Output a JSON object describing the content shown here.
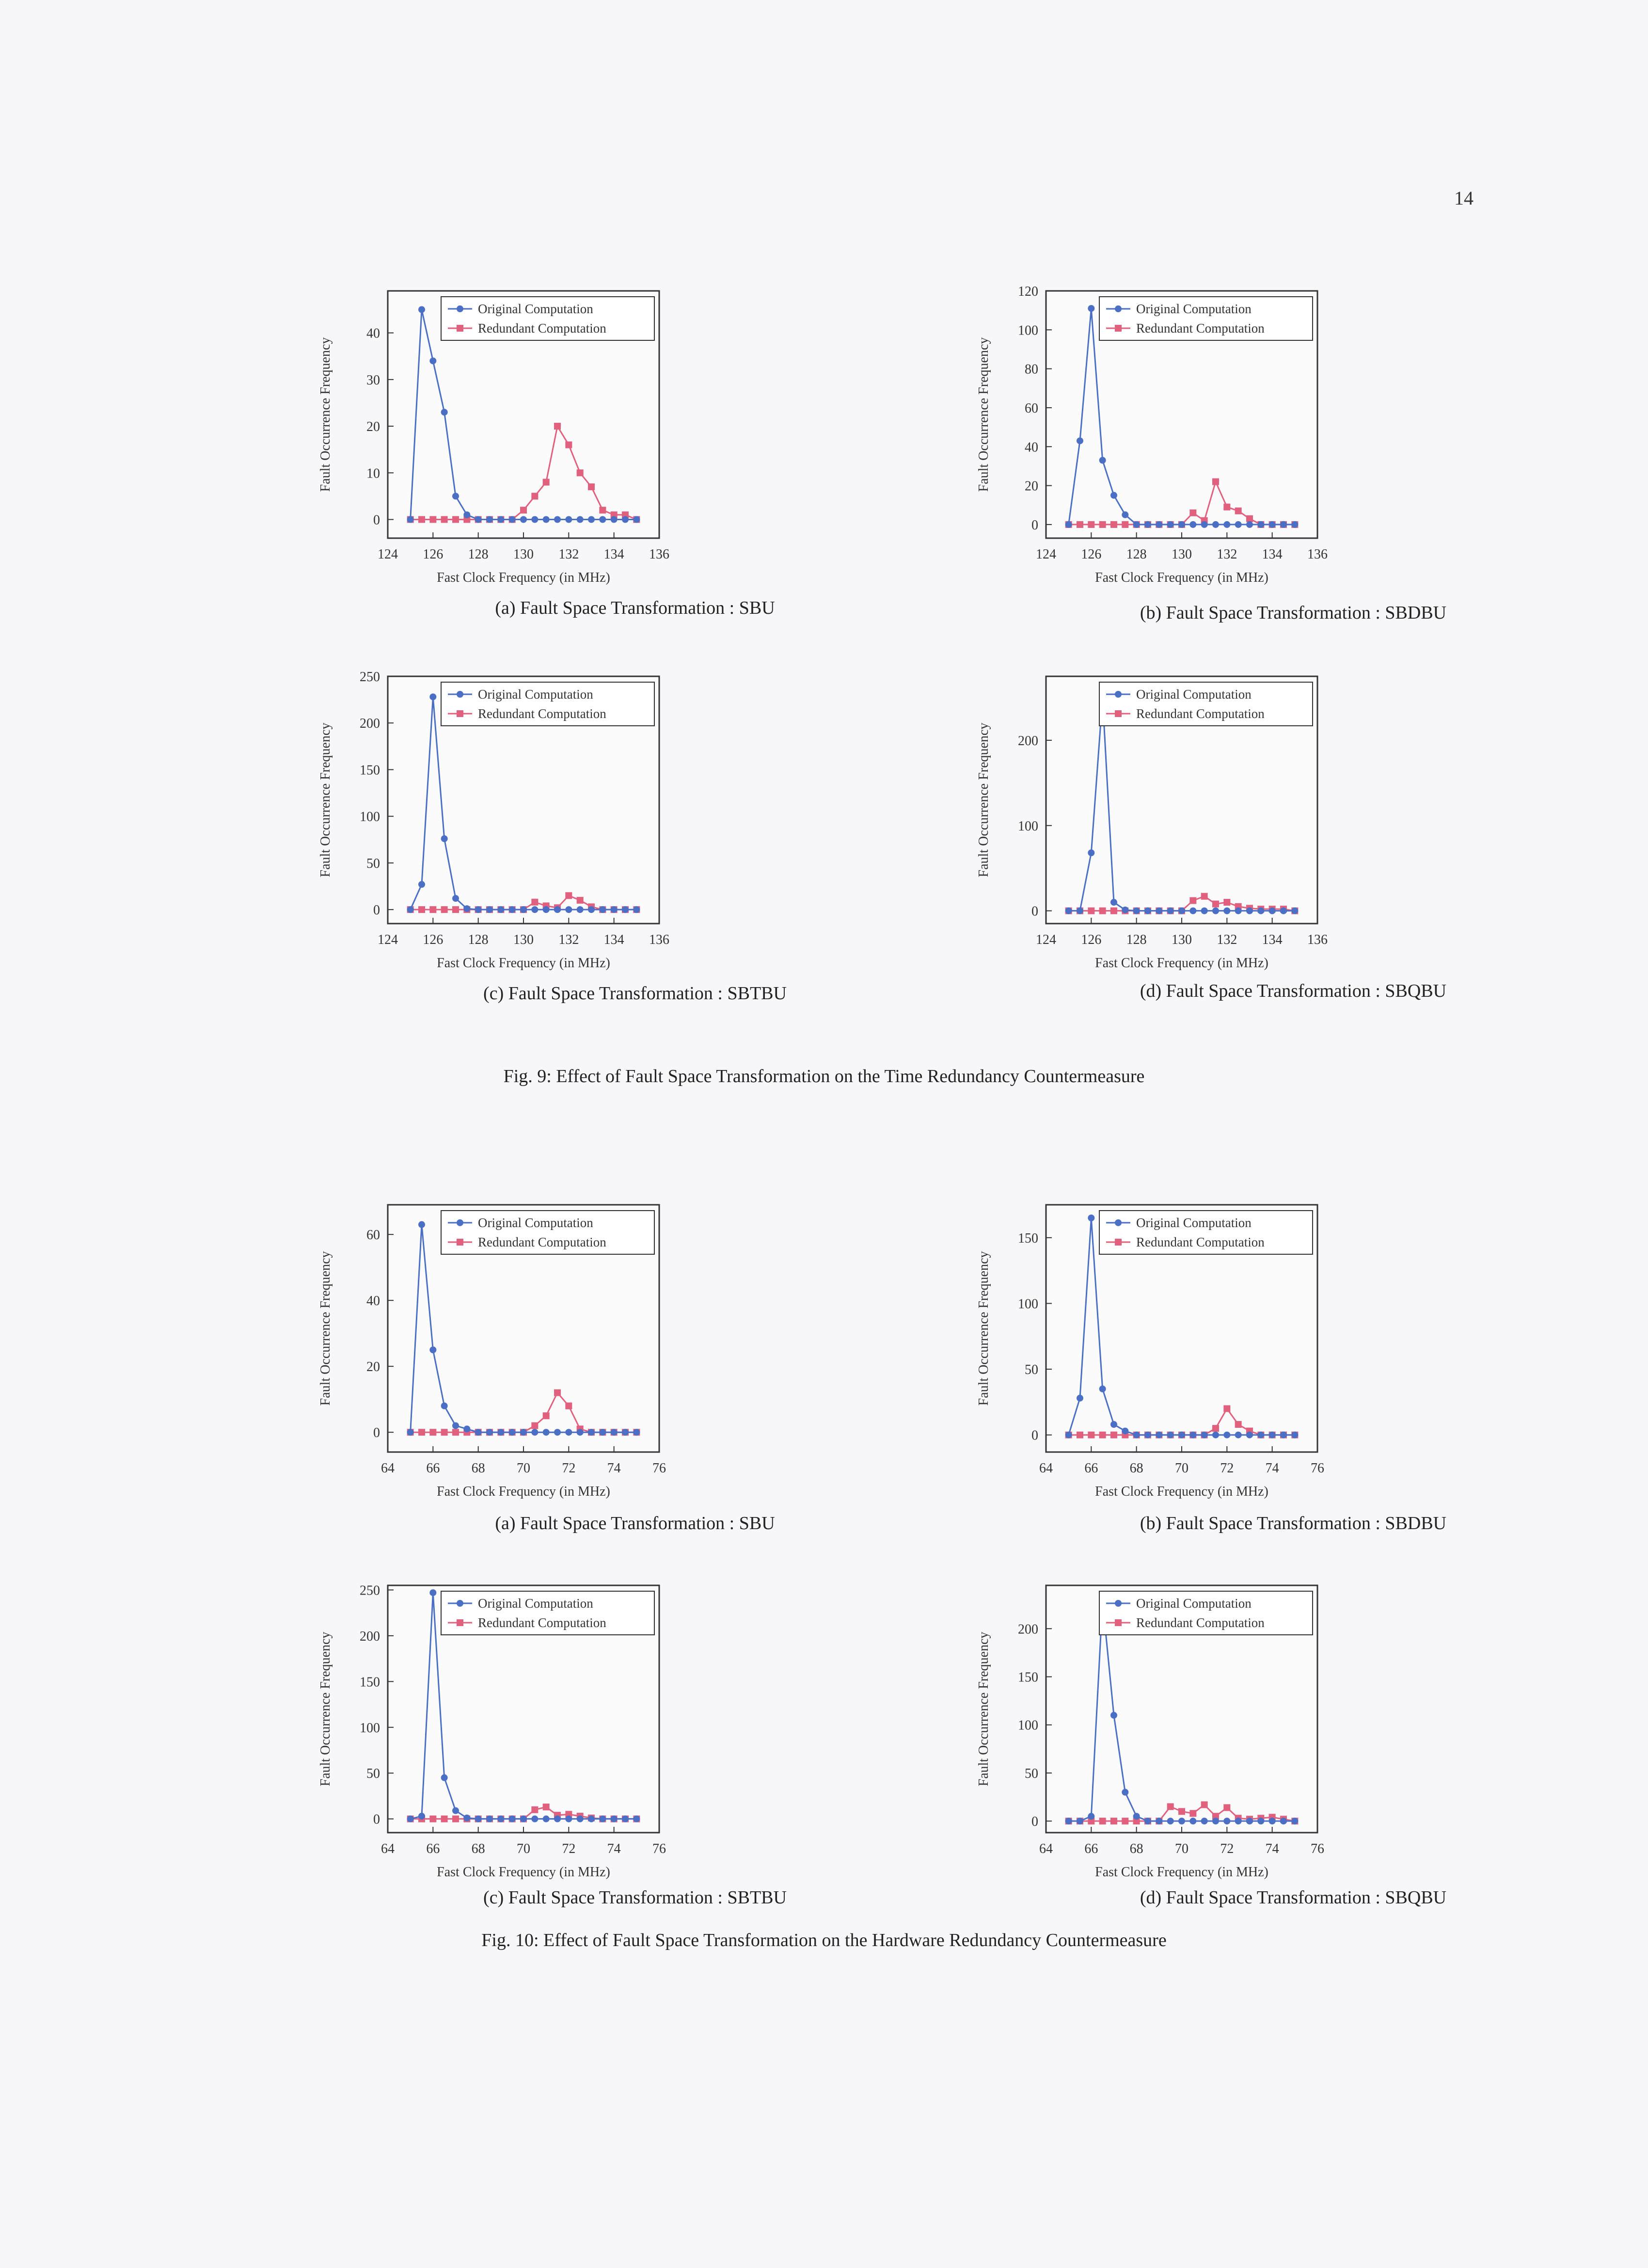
{
  "page_number": "14",
  "colors": {
    "original": "#4a6fc4",
    "redundant": "#e0607e"
  },
  "legend": {
    "original": "Original Computation",
    "redundant": "Redundant Computation"
  },
  "figures": [
    {
      "caption": "Fig. 9: Effect of Fault Space Transformation on the Time Redundancy Countermeasure",
      "subfigures": [
        {
          "caption": "(a) Fault Space Transformation : SBU"
        },
        {
          "caption": "(b) Fault Space Transformation : SBDBU"
        },
        {
          "caption": "(c) Fault Space Transformation : SBTBU"
        },
        {
          "caption": "(d) Fault Space Transformation : SBQBU"
        }
      ]
    },
    {
      "caption": "Fig. 10: Effect of Fault Space Transformation on the Hardware Redundancy Countermeasure",
      "subfigures": [
        {
          "caption": "(a) Fault Space Transformation : SBU"
        },
        {
          "caption": "(b) Fault Space Transformation : SBDBU"
        },
        {
          "caption": "(c) Fault Space Transformation : SBTBU"
        },
        {
          "caption": "(d) Fault Space Transformation : SBQBU"
        }
      ]
    }
  ],
  "chart_data": [
    {
      "type": "line",
      "figure": "Fig. 9",
      "panel": "(a)",
      "xlabel": "Fast Clock Frequency (in MHz)",
      "ylabel": "Fault Occurrence Frequency",
      "xlim": [
        124,
        136
      ],
      "ylim": [
        -4,
        49
      ],
      "xticks": [
        124,
        126,
        128,
        130,
        132,
        134,
        136
      ],
      "yticks": [
        0,
        10,
        20,
        30,
        40
      ],
      "x": [
        125,
        125.5,
        126,
        126.5,
        127,
        127.5,
        128,
        128.5,
        129,
        129.5,
        130,
        130.5,
        131,
        131.5,
        132,
        132.5,
        133,
        133.5,
        134,
        134.5,
        135
      ],
      "series": [
        {
          "name": "Original Computation",
          "values": [
            0,
            45,
            34,
            23,
            5,
            1,
            0,
            0,
            0,
            0,
            0,
            0,
            0,
            0,
            0,
            0,
            0,
            0,
            0,
            0,
            0
          ]
        },
        {
          "name": "Redundant Computation",
          "values": [
            0,
            0,
            0,
            0,
            0,
            0,
            0,
            0,
            0,
            0,
            2,
            5,
            8,
            20,
            16,
            10,
            7,
            2,
            1,
            1,
            0
          ]
        }
      ]
    },
    {
      "type": "line",
      "figure": "Fig. 9",
      "panel": "(b)",
      "xlabel": "Fast Clock Frequency (in MHz)",
      "ylabel": "Fault Occurrence Frequency",
      "xlim": [
        124,
        136
      ],
      "ylim": [
        -7,
        120
      ],
      "xticks": [
        124,
        126,
        128,
        130,
        132,
        134,
        136
      ],
      "yticks": [
        0,
        20,
        40,
        60,
        80,
        100,
        120
      ],
      "x": [
        125,
        125.5,
        126,
        126.5,
        127,
        127.5,
        128,
        128.5,
        129,
        129.5,
        130,
        130.5,
        131,
        131.5,
        132,
        132.5,
        133,
        133.5,
        134,
        134.5,
        135
      ],
      "series": [
        {
          "name": "Original Computation",
          "values": [
            0,
            43,
            111,
            33,
            15,
            5,
            0,
            0,
            0,
            0,
            0,
            0,
            0,
            0,
            0,
            0,
            0,
            0,
            0,
            0,
            0
          ]
        },
        {
          "name": "Redundant Computation",
          "values": [
            0,
            0,
            0,
            0,
            0,
            0,
            0,
            0,
            0,
            0,
            0,
            6,
            2,
            22,
            9,
            7,
            3,
            0,
            0,
            0,
            0
          ]
        }
      ]
    },
    {
      "type": "line",
      "figure": "Fig. 9",
      "panel": "(c)",
      "xlabel": "Fast Clock Frequency (in MHz)",
      "ylabel": "Fault Occurrence Frequency",
      "xlim": [
        124,
        136
      ],
      "ylim": [
        -15,
        250
      ],
      "xticks": [
        124,
        126,
        128,
        130,
        132,
        134,
        136
      ],
      "yticks": [
        0,
        50,
        100,
        150,
        200,
        250
      ],
      "x": [
        125,
        125.5,
        126,
        126.5,
        127,
        127.5,
        128,
        128.5,
        129,
        129.5,
        130,
        130.5,
        131,
        131.5,
        132,
        132.5,
        133,
        133.5,
        134,
        134.5,
        135
      ],
      "series": [
        {
          "name": "Original Computation",
          "values": [
            0,
            27,
            228,
            76,
            12,
            1,
            0,
            0,
            0,
            0,
            0,
            0,
            0,
            0,
            0,
            0,
            0,
            0,
            0,
            0,
            0
          ]
        },
        {
          "name": "Redundant Computation",
          "values": [
            0,
            0,
            0,
            0,
            0,
            0,
            0,
            0,
            0,
            0,
            0,
            8,
            4,
            2,
            15,
            10,
            3,
            0,
            0,
            0,
            0
          ]
        }
      ]
    },
    {
      "type": "line",
      "figure": "Fig. 9",
      "panel": "(d)",
      "xlabel": "Fast Clock Frequency (in MHz)",
      "ylabel": "Fault Occurrence Frequency",
      "xlim": [
        124,
        136
      ],
      "ylim": [
        -15,
        275
      ],
      "xticks": [
        124,
        126,
        128,
        130,
        132,
        134,
        136
      ],
      "yticks": [
        0,
        100,
        200
      ],
      "x": [
        125,
        125.5,
        126,
        126.5,
        127,
        127.5,
        128,
        128.5,
        129,
        129.5,
        130,
        130.5,
        131,
        131.5,
        132,
        132.5,
        133,
        133.5,
        134,
        134.5,
        135
      ],
      "series": [
        {
          "name": "Original Computation",
          "values": [
            0,
            0,
            68,
            250,
            10,
            1,
            0,
            0,
            0,
            0,
            0,
            0,
            0,
            0,
            0,
            0,
            0,
            0,
            0,
            0,
            0
          ]
        },
        {
          "name": "Redundant Computation",
          "values": [
            0,
            0,
            0,
            0,
            0,
            0,
            0,
            0,
            0,
            0,
            0,
            12,
            17,
            8,
            10,
            5,
            3,
            2,
            2,
            2,
            0
          ]
        }
      ]
    },
    {
      "type": "line",
      "figure": "Fig. 10",
      "panel": "(a)",
      "xlabel": "Fast Clock Frequency (in MHz)",
      "ylabel": "Fault Occurrence Frequency",
      "xlim": [
        64,
        76
      ],
      "ylim": [
        -6,
        69
      ],
      "xticks": [
        64,
        66,
        68,
        70,
        72,
        74,
        76
      ],
      "yticks": [
        0,
        20,
        40,
        60
      ],
      "x": [
        65,
        65.5,
        66,
        66.5,
        67,
        67.5,
        68,
        68.5,
        69,
        69.5,
        70,
        70.5,
        71,
        71.5,
        72,
        72.5,
        73,
        73.5,
        74,
        74.5,
        75
      ],
      "series": [
        {
          "name": "Original Computation",
          "values": [
            0,
            63,
            25,
            8,
            2,
            1,
            0,
            0,
            0,
            0,
            0,
            0,
            0,
            0,
            0,
            0,
            0,
            0,
            0,
            0,
            0
          ]
        },
        {
          "name": "Redundant Computation",
          "values": [
            0,
            0,
            0,
            0,
            0,
            0,
            0,
            0,
            0,
            0,
            0,
            2,
            5,
            12,
            8,
            1,
            0,
            0,
            0,
            0,
            0
          ]
        }
      ]
    },
    {
      "type": "line",
      "figure": "Fig. 10",
      "panel": "(b)",
      "xlabel": "Fast Clock Frequency (in MHz)",
      "ylabel": "Fault Occurrence Frequency",
      "xlim": [
        64,
        76
      ],
      "ylim": [
        -13,
        175
      ],
      "xticks": [
        64,
        66,
        68,
        70,
        72,
        74,
        76
      ],
      "yticks": [
        0,
        50,
        100,
        150
      ],
      "x": [
        65,
        65.5,
        66,
        66.5,
        67,
        67.5,
        68,
        68.5,
        69,
        69.5,
        70,
        70.5,
        71,
        71.5,
        72,
        72.5,
        73,
        73.5,
        74,
        74.5,
        75
      ],
      "series": [
        {
          "name": "Original Computation",
          "values": [
            0,
            28,
            165,
            35,
            8,
            3,
            0,
            0,
            0,
            0,
            0,
            0,
            0,
            0,
            0,
            0,
            0,
            0,
            0,
            0,
            0
          ]
        },
        {
          "name": "Redundant Computation",
          "values": [
            0,
            0,
            0,
            0,
            0,
            0,
            0,
            0,
            0,
            0,
            0,
            0,
            0,
            5,
            20,
            8,
            3,
            0,
            0,
            0,
            0
          ]
        }
      ]
    },
    {
      "type": "line",
      "figure": "Fig. 10",
      "panel": "(c)",
      "xlabel": "Fast Clock Frequency (in MHz)",
      "ylabel": "Fault Occurrence Frequency",
      "xlim": [
        64,
        76
      ],
      "ylim": [
        -15,
        255
      ],
      "xticks": [
        64,
        66,
        68,
        70,
        72,
        74,
        76
      ],
      "yticks": [
        0,
        50,
        100,
        150,
        200,
        250
      ],
      "x": [
        65,
        65.5,
        66,
        66.5,
        67,
        67.5,
        68,
        68.5,
        69,
        69.5,
        70,
        70.5,
        71,
        71.5,
        72,
        72.5,
        73,
        73.5,
        74,
        74.5,
        75
      ],
      "series": [
        {
          "name": "Original Computation",
          "values": [
            0,
            3,
            247,
            45,
            9,
            1,
            0,
            0,
            0,
            0,
            0,
            0,
            0,
            0,
            0,
            0,
            0,
            0,
            0,
            0,
            0
          ]
        },
        {
          "name": "Redundant Computation",
          "values": [
            0,
            0,
            0,
            0,
            0,
            0,
            0,
            0,
            0,
            0,
            0,
            10,
            13,
            4,
            5,
            3,
            1,
            0,
            0,
            0,
            0
          ]
        }
      ]
    },
    {
      "type": "line",
      "figure": "Fig. 10",
      "panel": "(d)",
      "xlabel": "Fast Clock Frequency (in MHz)",
      "ylabel": "Fault Occurrence Frequency",
      "xlim": [
        64,
        76
      ],
      "ylim": [
        -12,
        245
      ],
      "xticks": [
        64,
        66,
        68,
        70,
        72,
        74,
        76
      ],
      "yticks": [
        0,
        50,
        100,
        150,
        200
      ],
      "x": [
        65,
        65.5,
        66,
        66.5,
        67,
        67.5,
        68,
        68.5,
        69,
        69.5,
        70,
        70.5,
        71,
        71.5,
        72,
        72.5,
        73,
        73.5,
        74,
        74.5,
        75
      ],
      "series": [
        {
          "name": "Original Computation",
          "values": [
            0,
            0,
            5,
            229,
            110,
            30,
            5,
            0,
            0,
            0,
            0,
            0,
            0,
            0,
            0,
            0,
            0,
            0,
            0,
            0,
            0
          ]
        },
        {
          "name": "Redundant Computation",
          "values": [
            0,
            0,
            0,
            0,
            0,
            0,
            0,
            0,
            0,
            15,
            10,
            8,
            17,
            5,
            14,
            3,
            2,
            3,
            4,
            2,
            0
          ]
        }
      ]
    }
  ]
}
